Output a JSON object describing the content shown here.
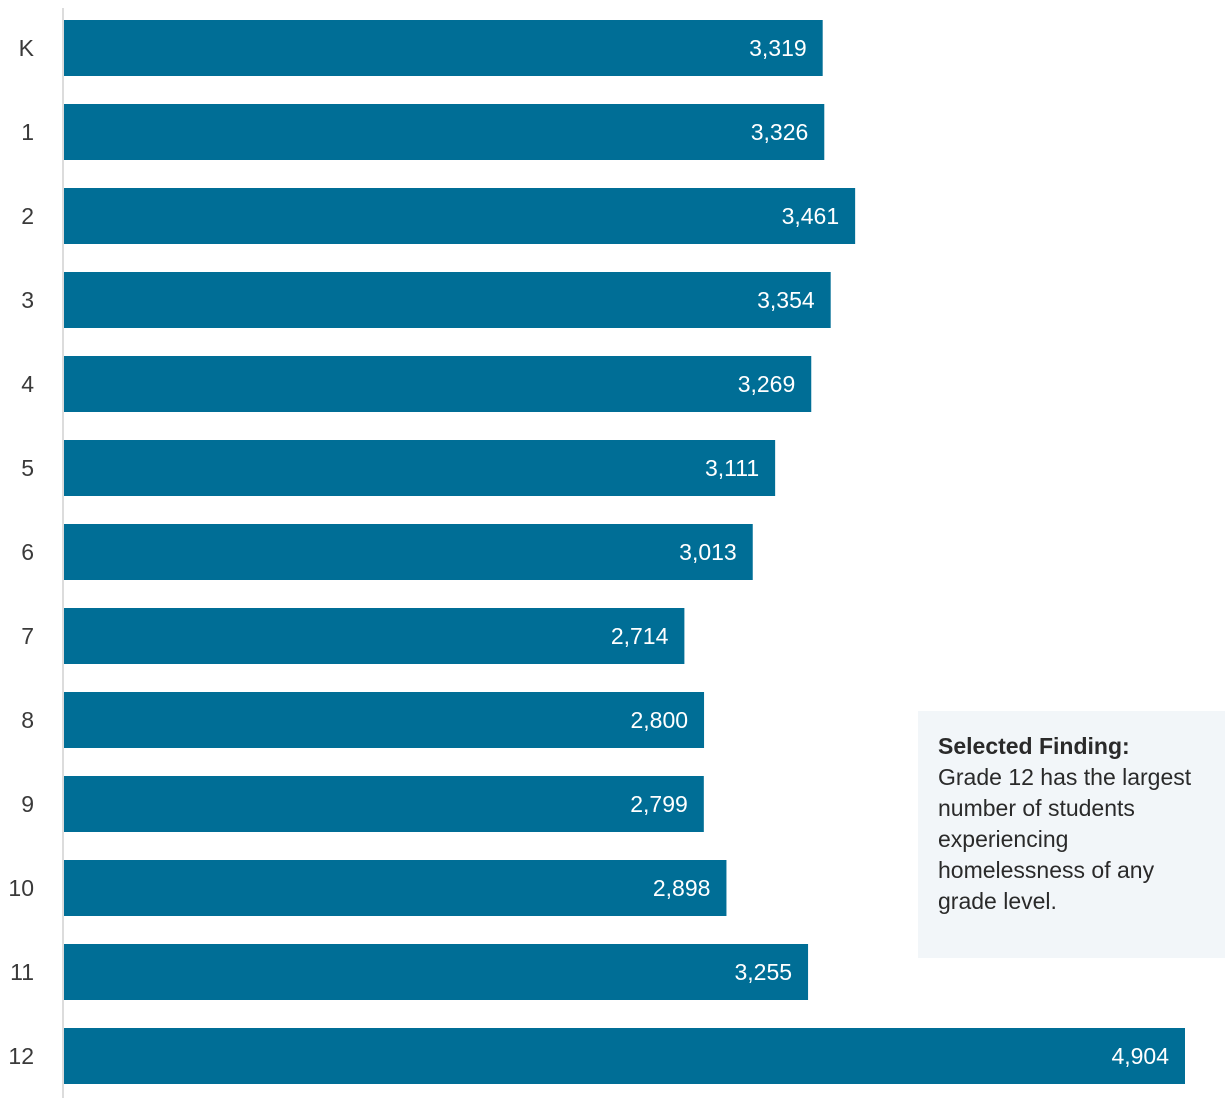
{
  "chart_data": {
    "type": "bar",
    "orientation": "horizontal",
    "categories": [
      "K",
      "1",
      "2",
      "3",
      "4",
      "5",
      "6",
      "7",
      "8",
      "9",
      "10",
      "11",
      "12"
    ],
    "values": [
      3319,
      3326,
      3461,
      3354,
      3269,
      3111,
      3013,
      2714,
      2800,
      2799,
      2898,
      3255,
      4904
    ],
    "value_labels": [
      "3,319",
      "3,326",
      "3,461",
      "3,354",
      "3,269",
      "3,111",
      "3,013",
      "2,714",
      "2,800",
      "2,799",
      "2,898",
      "3,255",
      "4,904"
    ],
    "xlim": [
      0,
      4904
    ],
    "grid": false,
    "legend": "none",
    "bar_color": "#006e96"
  },
  "callout": {
    "title": "Selected Finding:",
    "body": "Grade 12 has the largest number of students experiencing homelessness of any grade level.",
    "background": "#f2f6f9"
  }
}
